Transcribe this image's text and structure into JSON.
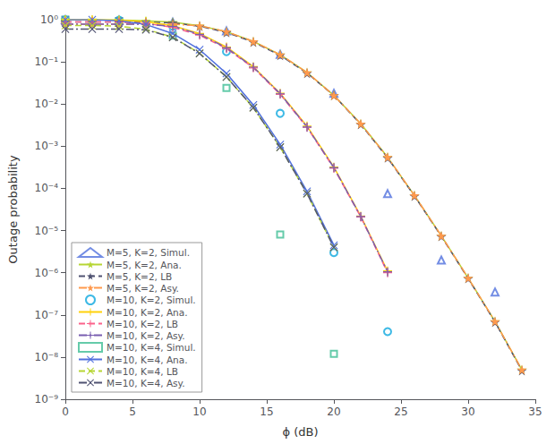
{
  "chart_data": {
    "type": "line",
    "xlabel": "ϕ (dB)",
    "ylabel": "Outage probability",
    "log": "y",
    "grid": false,
    "legend": "lower left",
    "xlim": [
      0,
      35
    ],
    "xticks": [
      0,
      5,
      10,
      15,
      20,
      25,
      30,
      35
    ],
    "ylim": [
      1e-09,
      1
    ],
    "yticks": [
      {
        "value": 1e-09,
        "label": "10⁻⁹"
      },
      {
        "value": 1e-08,
        "label": "10⁻⁸"
      },
      {
        "value": 1e-07,
        "label": "10⁻⁷"
      },
      {
        "value": 1e-06,
        "label": "10⁻⁶"
      },
      {
        "value": 1e-05,
        "label": "10⁻⁵"
      },
      {
        "value": 0.0001,
        "label": "10⁻⁴"
      },
      {
        "value": 0.001,
        "label": "10⁻³"
      },
      {
        "value": 0.01,
        "label": "10⁻²"
      },
      {
        "value": 0.1,
        "label": "10⁻¹"
      },
      {
        "value": 1,
        "label": "10⁰"
      }
    ],
    "series": [
      {
        "name": "M=5, K=2, Simul.",
        "type": "scatter",
        "marker": "triangle",
        "line_style": "none",
        "x": [
          0,
          4,
          8,
          12,
          16,
          20,
          24,
          28,
          32
        ],
        "values": [
          1.0,
          0.98,
          0.87,
          0.54,
          0.15,
          0.018,
          7.5e-05,
          2e-06,
          3.5e-07
        ]
      },
      {
        "name": "M=5, K=2, Ana.",
        "type": "line",
        "marker": "star",
        "line_style": "solid",
        "x": [
          0,
          2,
          4,
          6,
          8,
          10,
          12,
          14,
          16,
          18,
          20,
          22,
          24,
          26,
          28,
          30,
          32,
          34
        ],
        "values": [
          1.0,
          0.999,
          0.985,
          0.945,
          0.87,
          0.72,
          0.52,
          0.305,
          0.148,
          0.056,
          0.016,
          0.0034,
          0.00055,
          6.8e-05,
          7.5e-06,
          7.5e-07,
          7e-08,
          5e-09
        ]
      },
      {
        "name": "M=5, K=2, LB",
        "type": "line",
        "marker": "star",
        "line_style": "dashed",
        "x": [
          0,
          2,
          4,
          6,
          8,
          10,
          12,
          14,
          16,
          18,
          20,
          22,
          24,
          26,
          28,
          30,
          32,
          34
        ],
        "values": [
          0.88,
          0.88,
          0.88,
          0.88,
          0.84,
          0.7,
          0.5,
          0.295,
          0.143,
          0.054,
          0.016,
          0.0033,
          0.00053,
          6.6e-05,
          7.3e-06,
          7.3e-07,
          6.8e-08,
          4.8e-09
        ]
      },
      {
        "name": "M=5, K=2, Asy.",
        "type": "line",
        "marker": "star",
        "line_style": "dashdot",
        "x": [
          0,
          2,
          4,
          6,
          8,
          10,
          12,
          14,
          16,
          18,
          20,
          22,
          24,
          26,
          28,
          30,
          32,
          34
        ],
        "values": [
          0.78,
          0.78,
          0.78,
          0.78,
          0.78,
          0.72,
          0.52,
          0.305,
          0.148,
          0.056,
          0.016,
          0.0034,
          0.00055,
          6.8e-05,
          7.5e-06,
          7.5e-07,
          7e-08,
          5e-09
        ]
      },
      {
        "name": "M=10, K=2, Simul.",
        "type": "scatter",
        "marker": "circle",
        "line_style": "none",
        "x": [
          0,
          4,
          8,
          12,
          16,
          20,
          24
        ],
        "values": [
          1.0,
          0.97,
          0.7,
          0.175,
          0.006,
          3e-06,
          4e-08
        ]
      },
      {
        "name": "M=10, K=2, Ana.",
        "type": "line",
        "marker": "plus",
        "line_style": "solid",
        "x": [
          0,
          2,
          4,
          6,
          8,
          10,
          12,
          14,
          16,
          18,
          20,
          22,
          24
        ],
        "values": [
          1.0,
          0.998,
          0.975,
          0.9,
          0.72,
          0.47,
          0.225,
          0.077,
          0.018,
          0.003,
          0.00032,
          2.2e-05,
          1.1e-06
        ]
      },
      {
        "name": "M=10, K=2, LB",
        "type": "line",
        "marker": "plus",
        "line_style": "dashed",
        "x": [
          0,
          2,
          4,
          6,
          8,
          10,
          12,
          14,
          16,
          18,
          20,
          22,
          24
        ],
        "values": [
          0.88,
          0.88,
          0.88,
          0.82,
          0.66,
          0.43,
          0.207,
          0.072,
          0.017,
          0.0028,
          0.0003,
          2.1e-05,
          1e-06
        ]
      },
      {
        "name": "M=10, K=2, Asy.",
        "type": "line",
        "marker": "plus",
        "line_style": "dashdot",
        "x": [
          0,
          2,
          4,
          6,
          8,
          10,
          12,
          14,
          16,
          18,
          20,
          22,
          24
        ],
        "values": [
          0.78,
          0.78,
          0.78,
          0.78,
          0.7,
          0.45,
          0.215,
          0.075,
          0.0175,
          0.00285,
          0.00031,
          2.15e-05,
          1.05e-06
        ]
      },
      {
        "name": "M=10, K=4, Simul.",
        "type": "scatter",
        "marker": "square",
        "line_style": "none",
        "x": [
          0,
          4,
          8,
          12,
          16,
          20
        ],
        "values": [
          1.0,
          0.93,
          0.42,
          0.024,
          8e-06,
          1.2e-08
        ]
      },
      {
        "name": "M=10, K=4, Ana.",
        "type": "line",
        "marker": "x",
        "line_style": "solid",
        "x": [
          0,
          2,
          4,
          6,
          8,
          10,
          12,
          14,
          16,
          18,
          20
        ],
        "values": [
          1.0,
          0.995,
          0.94,
          0.77,
          0.47,
          0.195,
          0.053,
          0.0095,
          0.0011,
          8.5e-05,
          4.5e-06
        ]
      },
      {
        "name": "M=10, K=4, LB",
        "type": "line",
        "marker": "x",
        "line_style": "dashed",
        "x": [
          0,
          2,
          4,
          6,
          8,
          10,
          12,
          14,
          16,
          18,
          20
        ],
        "values": [
          0.73,
          0.73,
          0.7,
          0.595,
          0.385,
          0.16,
          0.044,
          0.0082,
          0.00095,
          7.5e-05,
          4e-06
        ]
      },
      {
        "name": "M=10, K=4, Asy.",
        "type": "line",
        "marker": "x",
        "line_style": "dashdot",
        "x": [
          0,
          2,
          4,
          6,
          8,
          10,
          12,
          14,
          16,
          18,
          20
        ],
        "values": [
          0.6,
          0.6,
          0.6,
          0.575,
          0.38,
          0.158,
          0.044,
          0.0082,
          0.00095,
          7.5e-05,
          4e-06
        ]
      }
    ]
  }
}
